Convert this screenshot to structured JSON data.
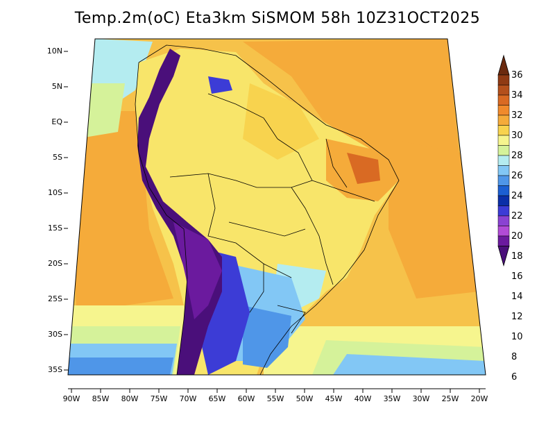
{
  "title": "Temp.2m(oC) Eta3km SiSMOM 58h 10Z31OCT2025",
  "lat_labels": [
    "10N",
    "5N",
    "EQ",
    "5S",
    "10S",
    "15S",
    "20S",
    "25S",
    "30S",
    "35S"
  ],
  "lon_labels": [
    "90W",
    "85W",
    "80W",
    "75W",
    "70W",
    "65W",
    "60W",
    "55W",
    "50W",
    "45W",
    "40W",
    "35W",
    "30W",
    "25W",
    "20W"
  ],
  "colorbar": {
    "labels": [
      "36",
      "34",
      "32",
      "30",
      "28",
      "26",
      "24",
      "22",
      "20",
      "18",
      "16",
      "14",
      "12",
      "10",
      "8",
      "6"
    ],
    "colors": [
      "#6b2a0f",
      "#8f3a14",
      "#b4501c",
      "#d96a23",
      "#f08a2c",
      "#f5ab3a",
      "#f8d34e",
      "#f6f58e",
      "#d5f29a",
      "#b4ecf0",
      "#82c7f5",
      "#4f96e8",
      "#1c5fd2",
      "#0b2fa8",
      "#3c3cd6",
      "#8a42d2",
      "#b14bd6",
      "#6b1a9e",
      "#4a0f7a"
    ]
  }
}
